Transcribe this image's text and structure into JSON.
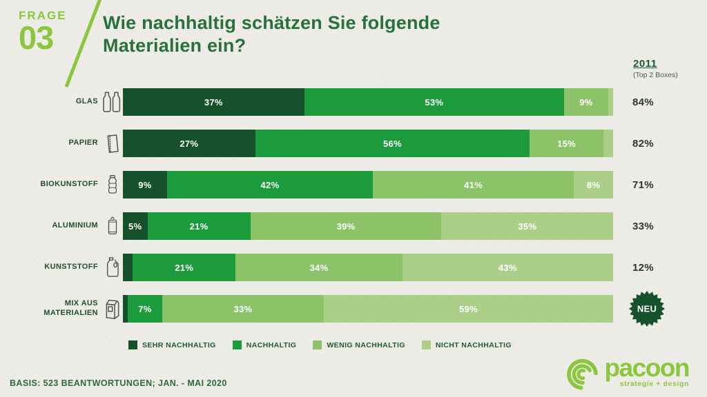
{
  "page": {
    "background": "#EDECE6",
    "accent_green": "#8CC63E",
    "title_green": "#27713C"
  },
  "header": {
    "question_tag": "FRAGE",
    "question_number": "03",
    "title_line1": "Wie nachhaltig schätzen Sie folgende",
    "title_line2": "Materialien ein?"
  },
  "top2_header": {
    "year": "2011",
    "subtitle": "(Top 2 Boxes)"
  },
  "legend": [
    {
      "label": "SEHR NACHHALTIG",
      "color": "#15522B"
    },
    {
      "label": "NACHHALTIG",
      "color": "#1B9B3C"
    },
    {
      "label": "WENIG NACHHALTIG",
      "color": "#8CC268"
    },
    {
      "label": "NICHT NACHHALTIG",
      "color": "#ABCF88"
    }
  ],
  "chart_data": {
    "type": "bar",
    "stacked": true,
    "orientation": "horizontal",
    "title": "Wie nachhaltig schätzen Sie folgende Materialien ein?",
    "unit": "%",
    "xlim": [
      0,
      100
    ],
    "categories": [
      "GLAS",
      "PAPIER",
      "BIOKUNSTOFF",
      "ALUMINIUM",
      "KUNSTSTOFF",
      "MIX AUS MATERIALIEN"
    ],
    "series": [
      {
        "name": "SEHR NACHHALTIG",
        "values": [
          37,
          27,
          9,
          5,
          2,
          1
        ]
      },
      {
        "name": "NACHHALTIG",
        "values": [
          53,
          56,
          42,
          21,
          21,
          7
        ]
      },
      {
        "name": "WENIG NACHHALTIG",
        "values": [
          9,
          15,
          41,
          39,
          34,
          33
        ]
      },
      {
        "name": "NICHT NACHHALTIG",
        "values": [
          1,
          2,
          8,
          35,
          43,
          59
        ]
      }
    ],
    "right_column": {
      "header": "2011",
      "subheader": "(Top 2 Boxes)",
      "values": [
        "84%",
        "82%",
        "71%",
        "33%",
        "12%",
        "NEU"
      ]
    }
  },
  "rows_meta": {
    "label_lines": [
      [
        "GLAS"
      ],
      [
        "PAPIER"
      ],
      [
        "BIOKUNSTOFF"
      ],
      [
        "ALUMINIUM"
      ],
      [
        "KUNSTSTOFF"
      ],
      [
        "MIX AUS",
        "MATERIALIEN"
      ]
    ],
    "icons": [
      "glass-bottles-icon",
      "paper-bag-icon",
      "plastic-bottle-icon",
      "aluminium-can-icon",
      "detergent-jug-icon",
      "mixed-packaging-icon"
    ]
  },
  "badge": {
    "text": "NEU",
    "bg": "#15522B",
    "fg": "#FFFFFF"
  },
  "footer": {
    "basis": "BASIS: 523 BEANTWORTUNGEN; JAN. - MAI 2020"
  },
  "logo": {
    "name": "pacoon",
    "tagline": "strategie + design",
    "color": "#8CC63E"
  }
}
